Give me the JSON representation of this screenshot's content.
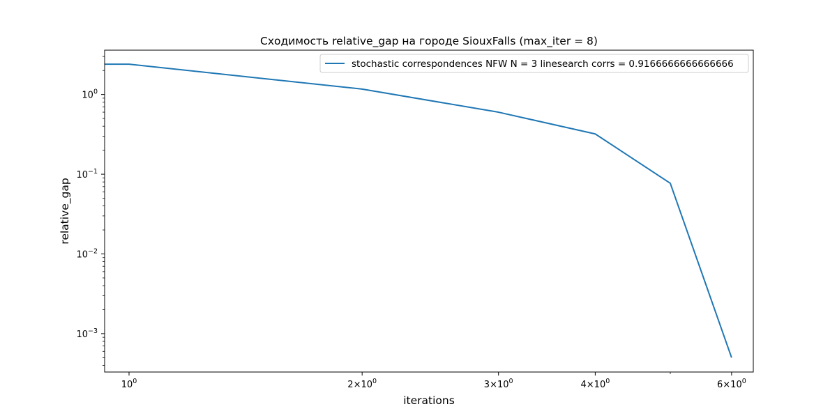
{
  "chart_data": {
    "type": "line",
    "title": "Сходимость relative_gap на городе SiouxFalls  (max_iter = 8)",
    "xlabel": "iterations",
    "ylabel": "relative_gap",
    "x_scale": "log",
    "y_scale": "log",
    "xlim": [
      0.93,
      6.4
    ],
    "ylim": [
      0.00033,
      3.6
    ],
    "grid": false,
    "legend_position": "top-right",
    "x_ticks": [
      {
        "value": 1,
        "base": "10",
        "exp": "0",
        "coef": ""
      },
      {
        "value": 2,
        "base": "10",
        "exp": "0",
        "coef": "2×"
      },
      {
        "value": 3,
        "base": "10",
        "exp": "0",
        "coef": "3×"
      },
      {
        "value": 4,
        "base": "10",
        "exp": "0",
        "coef": "4×"
      },
      {
        "value": 6,
        "base": "10",
        "exp": "0",
        "coef": "6×"
      }
    ],
    "x_minor_ticks": [
      5
    ],
    "y_ticks": [
      {
        "value": 1,
        "base": "10",
        "exp": "0"
      },
      {
        "value": 0.1,
        "base": "10",
        "exp": "−1"
      },
      {
        "value": 0.01,
        "base": "10",
        "exp": "−2"
      },
      {
        "value": 0.001,
        "base": "10",
        "exp": "−3"
      }
    ],
    "series": [
      {
        "name": "stochastic correspondences NFW N = 3 linesearch corrs = 0.9166666666666666",
        "color": "#1f77b4",
        "x": [
          0,
          1,
          2,
          3,
          4,
          5,
          6
        ],
        "y": [
          2.4,
          2.4,
          1.17,
          0.6,
          0.32,
          0.077,
          0.0005
        ]
      }
    ]
  }
}
